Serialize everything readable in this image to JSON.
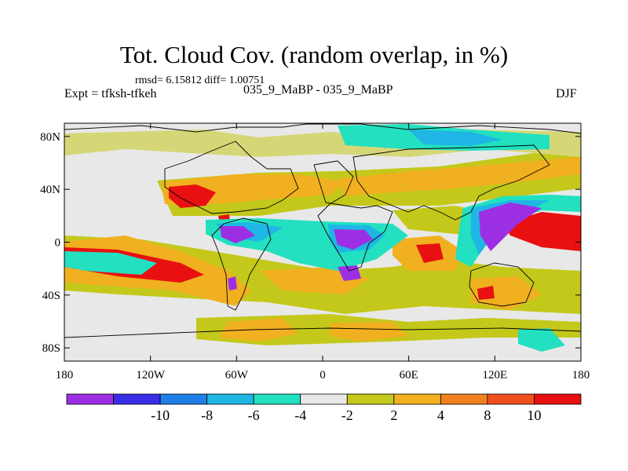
{
  "title": "Tot. Cloud Cov. (random overlap, in %)",
  "stats": "rmsd= 6.15812 diff= 1.00751",
  "experiment": "Expt = tfksh-tfkeh",
  "period": "035_9_MaBP - 035_9_MaBP",
  "season": "DJF",
  "map": {
    "projection": "cylindrical-equidistant",
    "lon_range": [
      -180,
      180
    ],
    "lat_range": [
      -90,
      90
    ],
    "lat_ticks": [
      {
        "value": 80,
        "label": "80N"
      },
      {
        "value": 40,
        "label": "40N"
      },
      {
        "value": 0,
        "label": "0"
      },
      {
        "value": -40,
        "label": "40S"
      },
      {
        "value": -80,
        "label": "80S"
      }
    ],
    "lon_ticks": [
      {
        "value": -180,
        "label": "180"
      },
      {
        "value": -120,
        "label": "120W"
      },
      {
        "value": -60,
        "label": "60W"
      },
      {
        "value": 0,
        "label": "0"
      },
      {
        "value": 60,
        "label": "60E"
      },
      {
        "value": 120,
        "label": "120E"
      },
      {
        "value": 180,
        "label": "180"
      }
    ]
  },
  "colorbar": {
    "colors": [
      "#9c2fe4",
      "#3a2de6",
      "#1e7fe6",
      "#1fb6e6",
      "#22e0c0",
      "#e8e8e8",
      "#c4c81a",
      "#f0b020",
      "#f08020",
      "#f05020",
      "#e81010"
    ],
    "labels": [
      "-10",
      "-8",
      "-6",
      "-4",
      "-2",
      "2",
      "4",
      "8",
      "10"
    ]
  },
  "colors": {
    "background": "#e8e8e8",
    "coastline": "#000000"
  }
}
